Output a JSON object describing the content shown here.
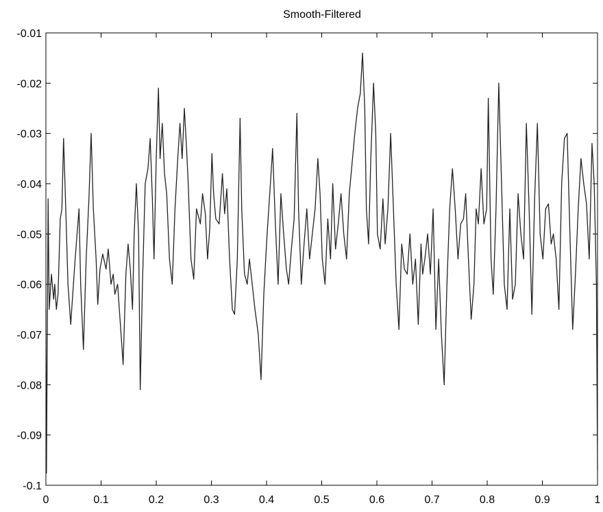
{
  "chart_data": {
    "type": "line",
    "title": "Smooth-Filtered",
    "color": "#222222",
    "xlim": [
      0,
      1
    ],
    "ylim": [
      -0.1,
      -0.01
    ],
    "xticks": [
      0,
      0.1,
      0.2,
      0.3,
      0.4,
      0.5,
      0.6,
      0.7,
      0.8,
      0.9,
      1
    ],
    "yticks": [
      -0.1,
      -0.09,
      -0.08,
      -0.07,
      -0.06,
      -0.05,
      -0.04,
      -0.03,
      -0.02,
      -0.01
    ],
    "x": [
      0,
      0.001,
      0.004,
      0.006,
      0.01,
      0.014,
      0.016,
      0.019,
      0.022,
      0.026,
      0.029,
      0.032,
      0.036,
      0.04,
      0.045,
      0.048,
      0.053,
      0.06,
      0.063,
      0.068,
      0.073,
      0.078,
      0.082,
      0.086,
      0.091,
      0.094,
      0.098,
      0.103,
      0.109,
      0.113,
      0.118,
      0.122,
      0.125,
      0.13,
      0.135,
      0.14,
      0.145,
      0.149,
      0.153,
      0.157,
      0.16,
      0.164,
      0.168,
      0.171,
      0.175,
      0.18,
      0.185,
      0.189,
      0.193,
      0.196,
      0.2,
      0.204,
      0.207,
      0.211,
      0.215,
      0.219,
      0.224,
      0.229,
      0.234,
      0.239,
      0.243,
      0.247,
      0.251,
      0.255,
      0.258,
      0.263,
      0.268,
      0.273,
      0.28,
      0.284,
      0.289,
      0.293,
      0.297,
      0.301,
      0.304,
      0.308,
      0.314,
      0.32,
      0.324,
      0.328,
      0.333,
      0.338,
      0.342,
      0.347,
      0.352,
      0.355,
      0.36,
      0.365,
      0.369,
      0.374,
      0.379,
      0.385,
      0.39,
      0.395,
      0.401,
      0.407,
      0.411,
      0.416,
      0.421,
      0.426,
      0.431,
      0.436,
      0.44,
      0.445,
      0.45,
      0.455,
      0.458,
      0.463,
      0.468,
      0.473,
      0.478,
      0.483,
      0.488,
      0.493,
      0.497,
      0.501,
      0.506,
      0.511,
      0.516,
      0.52,
      0.525,
      0.53,
      0.535,
      0.54,
      0.545,
      0.55,
      0.555,
      0.56,
      0.565,
      0.57,
      0.574,
      0.578,
      0.581,
      0.585,
      0.589,
      0.594,
      0.598,
      0.601,
      0.606,
      0.611,
      0.615,
      0.62,
      0.625,
      0.63,
      0.635,
      0.64,
      0.645,
      0.65,
      0.655,
      0.66,
      0.665,
      0.67,
      0.675,
      0.68,
      0.683,
      0.687,
      0.692,
      0.697,
      0.702,
      0.707,
      0.712,
      0.717,
      0.722,
      0.727,
      0.732,
      0.737,
      0.742,
      0.747,
      0.752,
      0.757,
      0.761,
      0.766,
      0.771,
      0.776,
      0.78,
      0.784,
      0.789,
      0.794,
      0.799,
      0.802,
      0.807,
      0.811,
      0.816,
      0.821,
      0.826,
      0.831,
      0.836,
      0.841,
      0.846,
      0.851,
      0.856,
      0.861,
      0.866,
      0.871,
      0.876,
      0.881,
      0.886,
      0.891,
      0.896,
      0.901,
      0.906,
      0.911,
      0.916,
      0.92,
      0.925,
      0.93,
      0.935,
      0.94,
      0.945,
      0.95,
      0.955,
      0.96,
      0.965,
      0.97,
      0.975,
      0.98,
      0.985,
      0.99,
      0.994,
      0.998,
      1
    ],
    "values": [
      -0.065,
      -0.0976,
      -0.043,
      -0.065,
      -0.058,
      -0.063,
      -0.06,
      -0.065,
      -0.062,
      -0.047,
      -0.045,
      -0.031,
      -0.045,
      -0.06,
      -0.068,
      -0.063,
      -0.055,
      -0.045,
      -0.06,
      -0.073,
      -0.055,
      -0.043,
      -0.03,
      -0.045,
      -0.055,
      -0.064,
      -0.057,
      -0.054,
      -0.057,
      -0.053,
      -0.06,
      -0.058,
      -0.062,
      -0.06,
      -0.068,
      -0.076,
      -0.058,
      -0.052,
      -0.057,
      -0.065,
      -0.05,
      -0.04,
      -0.05,
      -0.081,
      -0.06,
      -0.04,
      -0.037,
      -0.031,
      -0.043,
      -0.055,
      -0.035,
      -0.021,
      -0.035,
      -0.028,
      -0.038,
      -0.042,
      -0.055,
      -0.06,
      -0.045,
      -0.035,
      -0.028,
      -0.035,
      -0.025,
      -0.033,
      -0.04,
      -0.055,
      -0.059,
      -0.045,
      -0.048,
      -0.042,
      -0.046,
      -0.055,
      -0.049,
      -0.034,
      -0.042,
      -0.047,
      -0.048,
      -0.038,
      -0.046,
      -0.041,
      -0.055,
      -0.065,
      -0.066,
      -0.055,
      -0.027,
      -0.045,
      -0.058,
      -0.06,
      -0.055,
      -0.06,
      -0.065,
      -0.07,
      -0.079,
      -0.062,
      -0.05,
      -0.04,
      -0.033,
      -0.048,
      -0.06,
      -0.042,
      -0.05,
      -0.057,
      -0.06,
      -0.053,
      -0.047,
      -0.026,
      -0.045,
      -0.06,
      -0.052,
      -0.045,
      -0.055,
      -0.05,
      -0.045,
      -0.035,
      -0.042,
      -0.055,
      -0.06,
      -0.047,
      -0.055,
      -0.04,
      -0.053,
      -0.048,
      -0.042,
      -0.05,
      -0.055,
      -0.042,
      -0.036,
      -0.03,
      -0.025,
      -0.022,
      -0.014,
      -0.025,
      -0.045,
      -0.052,
      -0.035,
      -0.02,
      -0.03,
      -0.05,
      -0.053,
      -0.043,
      -0.052,
      -0.045,
      -0.03,
      -0.045,
      -0.06,
      -0.069,
      -0.052,
      -0.057,
      -0.058,
      -0.05,
      -0.06,
      -0.055,
      -0.068,
      -0.052,
      -0.058,
      -0.055,
      -0.05,
      -0.058,
      -0.045,
      -0.069,
      -0.055,
      -0.07,
      -0.08,
      -0.06,
      -0.045,
      -0.037,
      -0.045,
      -0.055,
      -0.048,
      -0.047,
      -0.042,
      -0.055,
      -0.067,
      -0.06,
      -0.045,
      -0.048,
      -0.037,
      -0.048,
      -0.045,
      -0.023,
      -0.055,
      -0.062,
      -0.045,
      -0.02,
      -0.04,
      -0.06,
      -0.065,
      -0.045,
      -0.063,
      -0.06,
      -0.042,
      -0.05,
      -0.055,
      -0.028,
      -0.045,
      -0.066,
      -0.043,
      -0.028,
      -0.05,
      -0.055,
      -0.045,
      -0.044,
      -0.052,
      -0.05,
      -0.055,
      -0.065,
      -0.04,
      -0.031,
      -0.03,
      -0.05,
      -0.069,
      -0.058,
      -0.045,
      -0.035,
      -0.04,
      -0.044,
      -0.055,
      -0.032,
      -0.04,
      -0.06,
      -0.097
    ]
  }
}
